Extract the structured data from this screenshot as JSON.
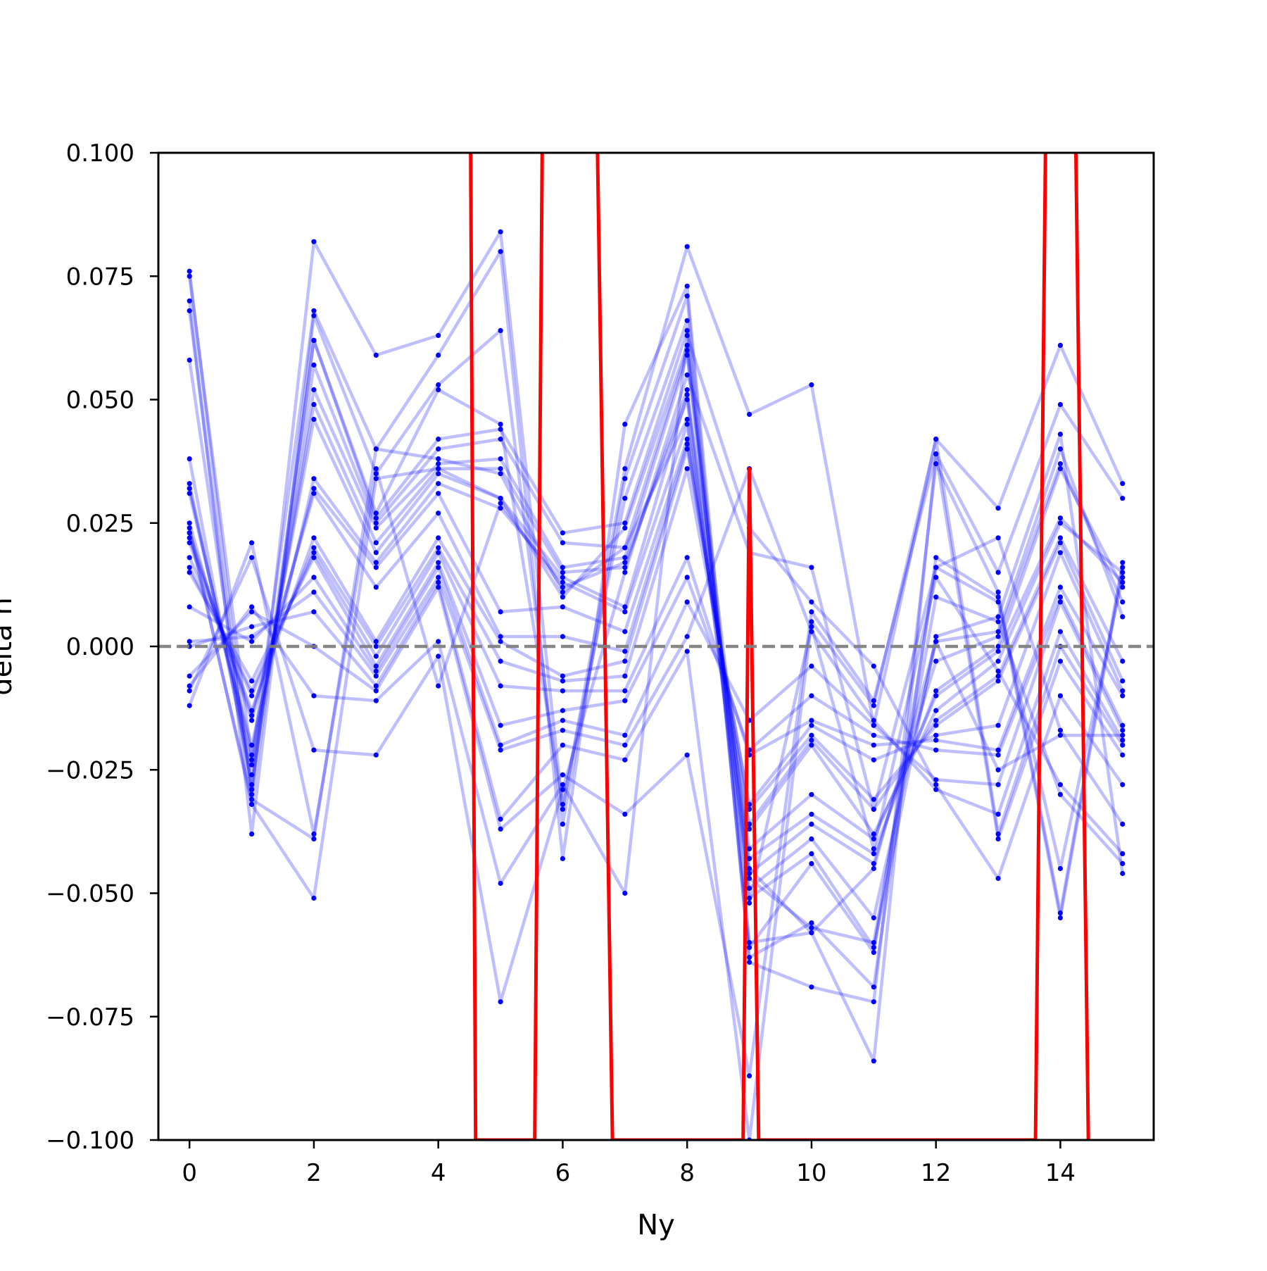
{
  "chart_data": {
    "type": "line",
    "xlabel": "Ny",
    "ylabel": "delta n",
    "xlim": [
      -0.5,
      15.5
    ],
    "ylim": [
      -0.1,
      0.1
    ],
    "x_ticks": [
      0,
      2,
      4,
      6,
      8,
      10,
      12,
      14
    ],
    "x_tick_labels": [
      "0",
      "2",
      "4",
      "6",
      "8",
      "10",
      "12",
      "14"
    ],
    "y_ticks": [
      -0.1,
      -0.075,
      -0.05,
      -0.025,
      0.0,
      0.025,
      0.05,
      0.075,
      0.1
    ],
    "y_tick_labels": [
      "−0.100",
      "−0.075",
      "−0.050",
      "−0.025",
      "0.000",
      "0.025",
      "0.050",
      "0.075",
      "0.100"
    ],
    "reference_line": {
      "y": 0.0,
      "style": "dashed",
      "color": "#808080"
    },
    "x": [
      0,
      1,
      2,
      3,
      4,
      5,
      6,
      7,
      8,
      9,
      10,
      11,
      12,
      13,
      14,
      15
    ],
    "colors": {
      "series": "#0000ff",
      "series_alpha": 0.25,
      "highlight": "#ff0000",
      "reference": "#808080"
    },
    "series": [
      {
        "values": [
          0.076,
          -0.03,
          0.082,
          0.059,
          0.063,
          0.084,
          -0.033,
          0.036,
          0.081,
          0.047,
          0.053,
          -0.016,
          0.042,
          0.028,
          0.061,
          0.033
        ]
      },
      {
        "values": [
          0.075,
          -0.023,
          0.068,
          0.04,
          0.059,
          0.08,
          -0.043,
          0.045,
          0.073,
          -0.06,
          -0.058,
          -0.084,
          0.039,
          0.015,
          0.049,
          0.03
        ]
      },
      {
        "values": [
          0.07,
          -0.038,
          0.067,
          0.035,
          0.053,
          0.064,
          -0.036,
          0.034,
          0.071,
          -0.064,
          -0.069,
          -0.072,
          0.037,
          0.011,
          -0.054,
          0.017
        ]
      },
      {
        "values": [
          0.068,
          -0.032,
          0.062,
          0.027,
          0.052,
          0.045,
          -0.032,
          0.03,
          0.066,
          -0.063,
          -0.056,
          -0.069,
          0.018,
          0.01,
          -0.055,
          0.016
        ]
      },
      {
        "values": [
          0.058,
          -0.029,
          0.062,
          0.026,
          0.042,
          0.044,
          0.023,
          0.025,
          0.064,
          -0.061,
          -0.044,
          -0.062,
          0.016,
          0.009,
          -0.045,
          0.014
        ]
      },
      {
        "values": [
          0.038,
          -0.028,
          0.057,
          0.025,
          0.04,
          0.042,
          0.021,
          0.02,
          0.06,
          -0.051,
          -0.042,
          -0.061,
          0.002,
          0.006,
          0.043,
          -0.046
        ]
      },
      {
        "values": [
          0.033,
          -0.026,
          0.052,
          0.024,
          0.037,
          0.038,
          0.016,
          0.018,
          0.059,
          -0.049,
          -0.039,
          -0.055,
          0.001,
          0.003,
          0.04,
          0.006
        ]
      },
      {
        "values": [
          0.032,
          -0.024,
          0.049,
          0.021,
          0.036,
          0.036,
          0.015,
          0.016,
          0.052,
          -0.046,
          -0.036,
          -0.044,
          -0.003,
          0.002,
          0.037,
          0.009
        ]
      },
      {
        "values": [
          0.031,
          -0.022,
          0.046,
          0.019,
          0.035,
          0.03,
          0.014,
          0.008,
          0.051,
          -0.043,
          -0.034,
          -0.042,
          -0.009,
          0.0,
          0.036,
          0.012
        ]
      },
      {
        "values": [
          0.025,
          -0.02,
          0.034,
          0.017,
          0.033,
          0.028,
          0.013,
          0.007,
          0.045,
          -0.041,
          -0.03,
          -0.039,
          -0.01,
          -0.001,
          0.026,
          0.013
        ]
      },
      {
        "values": [
          0.023,
          -0.015,
          0.032,
          0.016,
          0.031,
          0.007,
          0.008,
          0.003,
          0.042,
          -0.037,
          -0.02,
          -0.038,
          -0.013,
          -0.003,
          0.025,
          0.015
        ]
      },
      {
        "values": [
          0.022,
          -0.014,
          0.031,
          0.012,
          0.027,
          0.002,
          0.002,
          -0.001,
          0.041,
          -0.036,
          -0.019,
          -0.033,
          -0.015,
          -0.006,
          0.022,
          -0.003
        ]
      },
      {
        "values": [
          0.021,
          -0.013,
          0.022,
          0.001,
          0.022,
          0.001,
          -0.006,
          -0.003,
          0.04,
          -0.033,
          -0.018,
          -0.031,
          -0.016,
          -0.007,
          0.021,
          -0.007
        ]
      },
      {
        "values": [
          0.018,
          -0.01,
          0.02,
          0.0,
          0.02,
          -0.003,
          -0.007,
          -0.006,
          0.036,
          -0.032,
          -0.016,
          -0.023,
          -0.018,
          -0.016,
          0.019,
          -0.009
        ]
      },
      {
        "values": [
          0.016,
          -0.009,
          0.019,
          -0.002,
          0.019,
          -0.008,
          -0.009,
          -0.009,
          0.018,
          -0.022,
          -0.015,
          -0.02,
          -0.019,
          -0.021,
          0.012,
          -0.01
        ]
      },
      {
        "values": [
          0.015,
          -0.007,
          0.018,
          -0.004,
          0.017,
          -0.016,
          -0.013,
          -0.011,
          0.014,
          -0.021,
          -0.01,
          -0.018,
          -0.021,
          -0.022,
          0.01,
          -0.016
        ]
      },
      {
        "values": [
          0.008,
          0.001,
          0.014,
          -0.005,
          0.016,
          -0.02,
          -0.015,
          -0.018,
          0.009,
          -0.015,
          -0.004,
          -0.016,
          -0.027,
          -0.028,
          0.009,
          -0.017
        ]
      },
      {
        "values": [
          0.001,
          0.002,
          0.011,
          -0.006,
          0.014,
          -0.021,
          -0.017,
          -0.02,
          0.002,
          0.036,
          0.003,
          -0.015,
          -0.029,
          -0.034,
          0.003,
          -0.019
        ]
      },
      {
        "values": [
          0.0,
          0.004,
          0.007,
          -0.008,
          0.013,
          -0.035,
          -0.02,
          -0.023,
          -0.001,
          -0.1,
          0.005,
          -0.012,
          0.042,
          -0.038,
          0.0,
          -0.02
        ]
      },
      {
        "values": [
          -0.006,
          0.007,
          0.0,
          -0.009,
          0.012,
          -0.037,
          -0.026,
          -0.034,
          -0.022,
          -0.087,
          0.007,
          -0.011,
          0.039,
          -0.039,
          -0.003,
          -0.022
        ]
      },
      {
        "values": [
          -0.008,
          0.008,
          -0.01,
          -0.011,
          0.001,
          -0.048,
          -0.028,
          -0.05,
          0.063,
          0.024,
          0.009,
          -0.004,
          -0.028,
          -0.047,
          -0.01,
          -0.028
        ]
      },
      {
        "values": [
          -0.009,
          0.018,
          -0.021,
          -0.022,
          -0.002,
          -0.072,
          -0.029,
          0.015,
          0.055,
          0.019,
          0.016,
          -0.033,
          0.016,
          0.022,
          -0.017,
          -0.036
        ]
      },
      {
        "values": [
          -0.012,
          0.021,
          -0.038,
          0.036,
          -0.008,
          0.029,
          0.012,
          0.017,
          0.05,
          -0.052,
          0.004,
          -0.041,
          0.014,
          -0.005,
          -0.028,
          -0.042
        ]
      },
      {
        "values": [
          0.023,
          -0.031,
          -0.039,
          0.04,
          0.038,
          0.035,
          0.011,
          0.02,
          0.046,
          -0.047,
          -0.057,
          -0.06,
          0.01,
          0.005,
          -0.03,
          -0.044
        ]
      },
      {
        "values": [
          0.024,
          -0.032,
          -0.051,
          0.034,
          0.036,
          0.03,
          0.01,
          0.024,
          0.061,
          -0.045,
          -0.058,
          -0.045,
          0.001,
          -0.025,
          -0.018,
          -0.018
        ]
      }
    ],
    "highlight_series": {
      "x": [
        4.5,
        4.6,
        5.55,
        5.7,
        6.5,
        6.8,
        8.9,
        9.0,
        9.15,
        13.6,
        13.8,
        14.2,
        14.45
      ],
      "values": [
        0.15,
        -0.1,
        -0.1,
        0.15,
        0.15,
        -0.1,
        -0.1,
        0.036,
        -0.1,
        -0.1,
        0.15,
        0.15,
        -0.1
      ]
    }
  }
}
